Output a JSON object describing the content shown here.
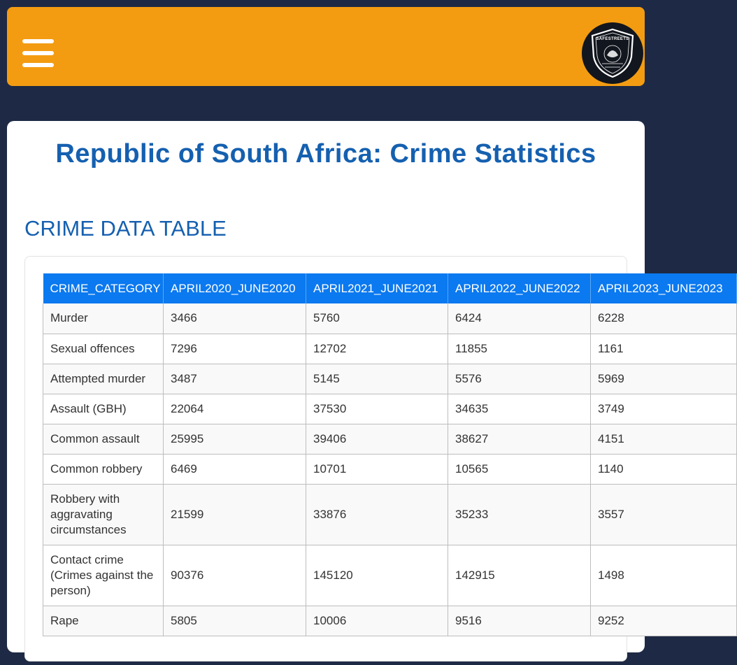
{
  "header": {
    "menu_icon": "hamburger-menu-icon",
    "logo_text": "SAFESTREETS",
    "colors": {
      "header_bg": "#f39c12",
      "page_bg": "#1e2a45"
    }
  },
  "main": {
    "title": "Republic of South Africa: Crime Statistics",
    "section_title": "CRIME DATA TABLE",
    "title_color": "#1560b0",
    "header_color": "#0b79f0"
  },
  "table": {
    "columns": [
      "CRIME_CATEGORY",
      "APRIL2020_JUNE2020",
      "APRIL2021_JUNE2021",
      "APRIL2022_JUNE2022",
      "APRIL2023_JUNE2023"
    ],
    "rows": [
      [
        "Murder",
        "3466",
        "5760",
        "6424",
        "6228"
      ],
      [
        "Sexual offences",
        "7296",
        "12702",
        "11855",
        "1161"
      ],
      [
        "Attempted murder",
        "3487",
        "5145",
        "5576",
        "5969"
      ],
      [
        "Assault (GBH)",
        "22064",
        "37530",
        "34635",
        "3749"
      ],
      [
        "Common assault",
        "25995",
        "39406",
        "38627",
        "4151"
      ],
      [
        "Common robbery",
        "6469",
        "10701",
        "10565",
        "1140"
      ],
      [
        "Robbery with aggravating circumstances",
        "21599",
        "33876",
        "35233",
        "3557"
      ],
      [
        "Contact crime (Crimes against the person)",
        "90376",
        "145120",
        "142915",
        "1498"
      ],
      [
        "Rape",
        "5805",
        "10006",
        "9516",
        "9252"
      ]
    ]
  }
}
